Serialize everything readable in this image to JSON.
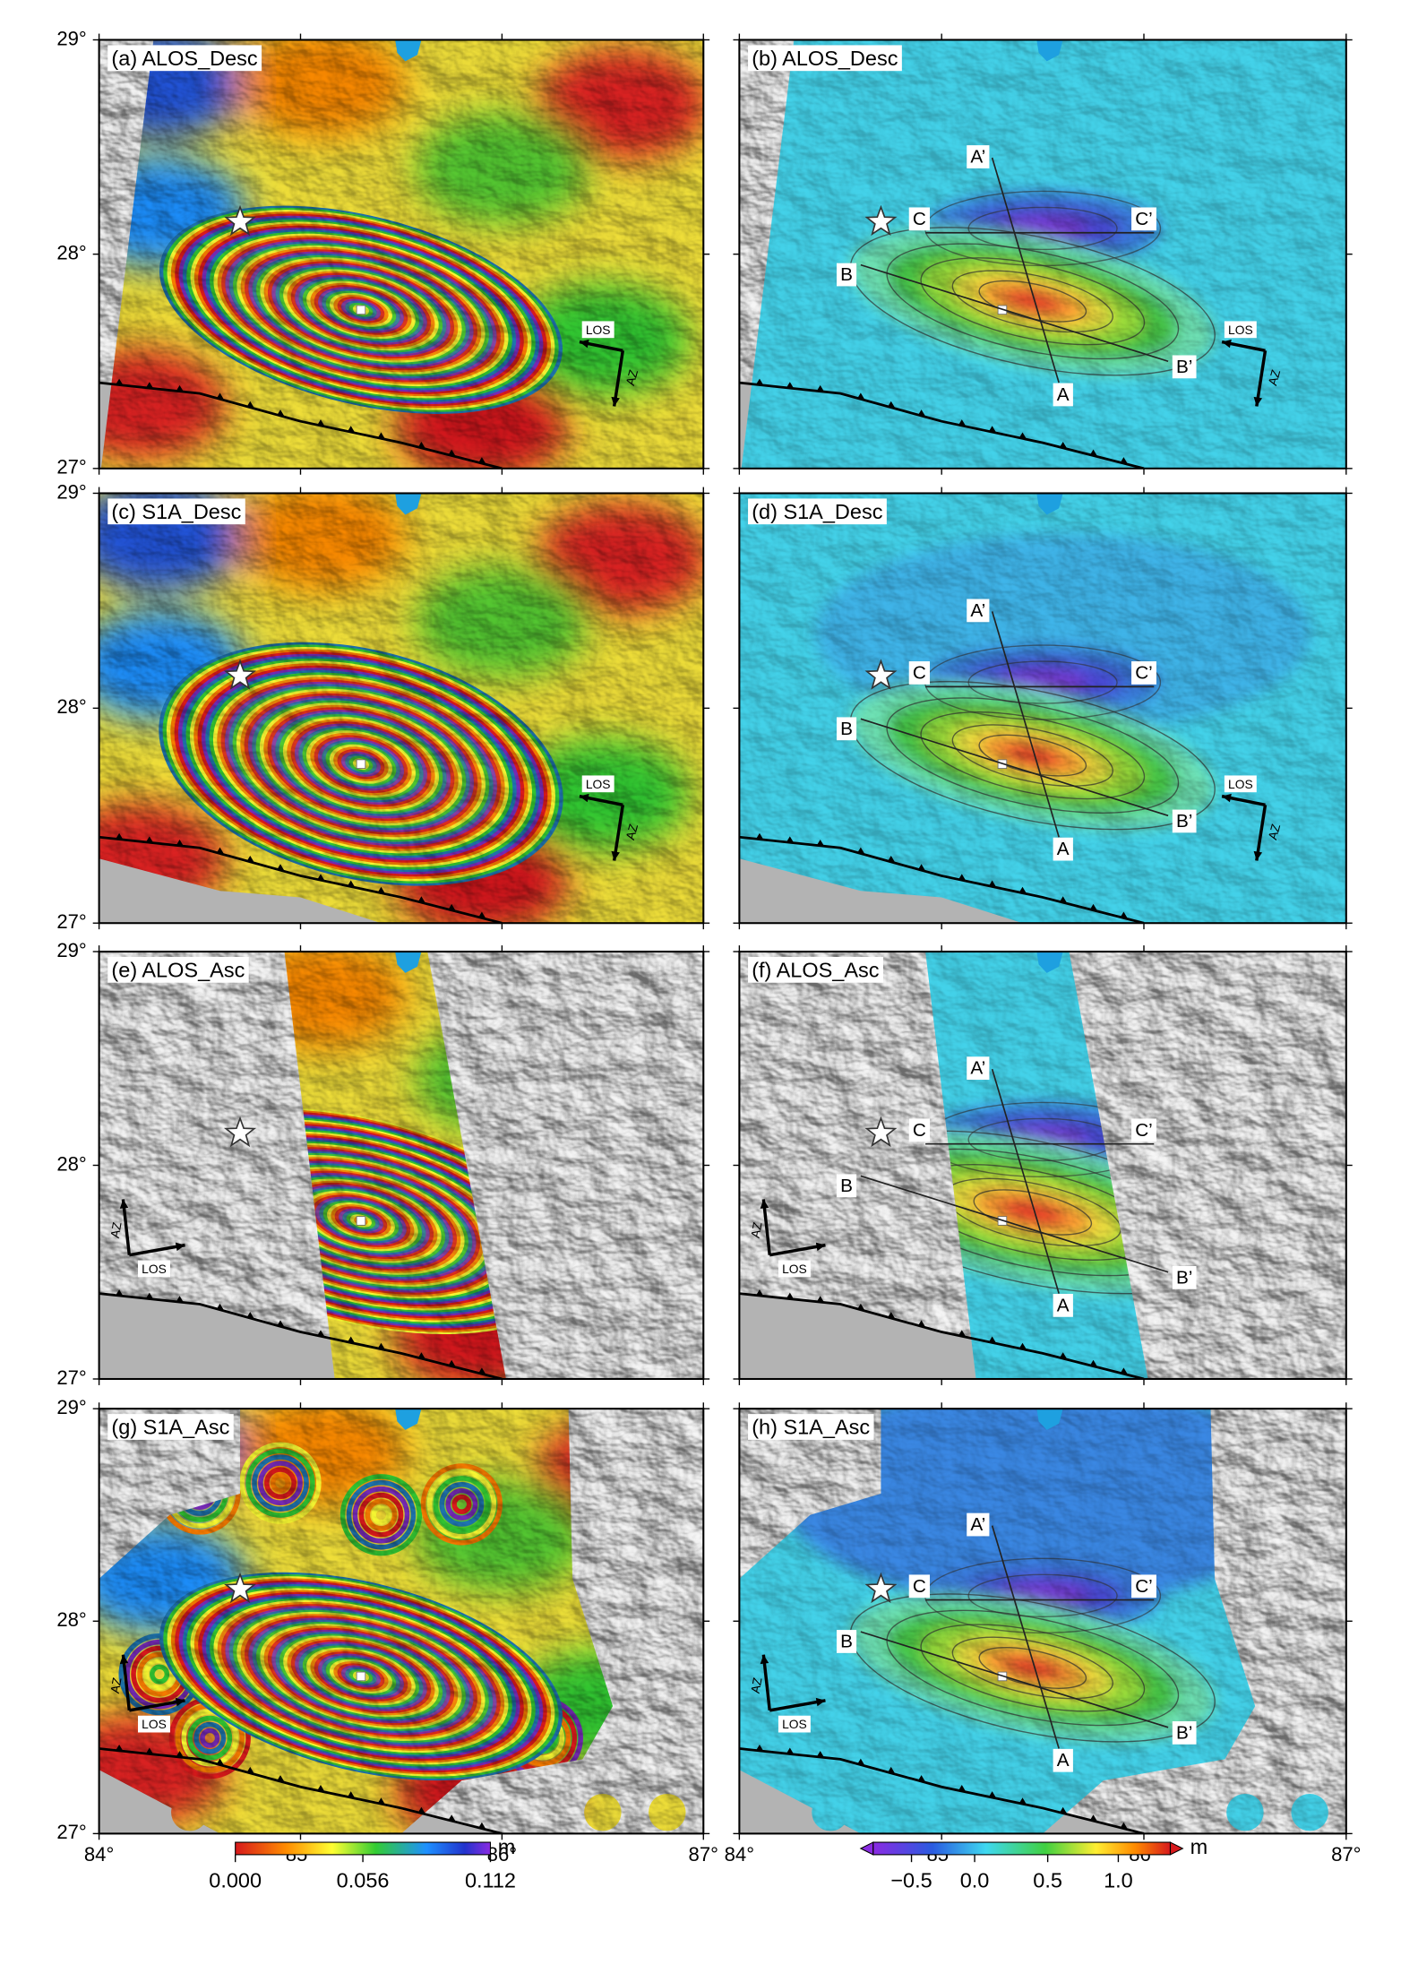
{
  "panels": [
    {
      "label": "(a) ALOS_Desc"
    },
    {
      "label": "(b) ALOS_Desc"
    },
    {
      "label": "(c) S1A_Desc"
    },
    {
      "label": "(d) S1A_Desc"
    },
    {
      "label": "(e) ALOS_Asc"
    },
    {
      "label": "(f) ALOS_Asc"
    },
    {
      "label": "(g) S1A_Asc"
    },
    {
      "label": "(h) S1A_Asc"
    }
  ],
  "y_tick_labels": [
    "29°",
    "28°",
    "27°"
  ],
  "x_tick_labels": [
    "84°",
    "85°",
    "86°",
    "87°"
  ],
  "profile_labels": [
    "A’",
    "A",
    "B",
    "B’",
    "C",
    "C’"
  ],
  "arrow_labels": {
    "los": "LOS",
    "az": "AZ"
  },
  "colorbars": [
    {
      "ticks": [
        "0.000",
        "0.056",
        "0.112"
      ],
      "unit": "m"
    },
    {
      "ticks": [
        "−0.5",
        "0.0",
        "0.5",
        "1.0"
      ],
      "unit": "m"
    }
  ]
}
